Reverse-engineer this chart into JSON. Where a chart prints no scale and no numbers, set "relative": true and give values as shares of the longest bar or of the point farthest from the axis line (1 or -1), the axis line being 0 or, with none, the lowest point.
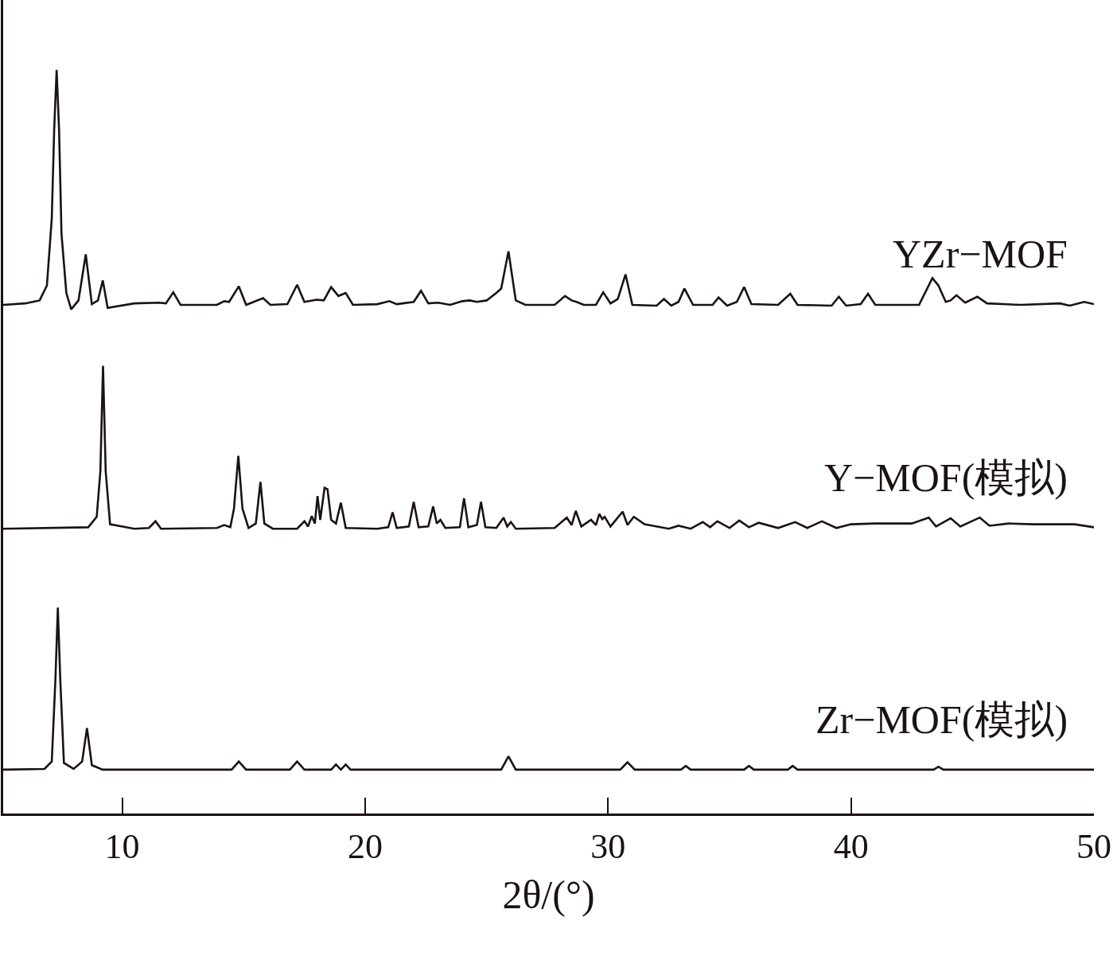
{
  "chart_data": {
    "type": "line",
    "relative": true,
    "xlabel": "2θ/(°)",
    "xlim": [
      5.1,
      50
    ],
    "xticks": [
      10,
      20,
      30,
      40,
      50
    ],
    "legend": false,
    "marker": "none",
    "line_style": "solid",
    "tick_labels": "x",
    "series": [
      {
        "name": "YZr−MOF",
        "color": "#1a1311",
        "x": [
          5.1,
          6.0,
          6.6,
          6.9,
          7.1,
          7.2,
          7.3,
          7.4,
          7.5,
          7.7,
          7.9,
          8.2,
          8.5,
          8.75,
          9.0,
          9.2,
          9.4,
          10.5,
          11.5,
          11.8,
          12.1,
          12.4,
          13.9,
          14.2,
          14.4,
          14.8,
          15.1,
          15.8,
          16.1,
          16.8,
          17.2,
          17.5,
          18.0,
          18.3,
          18.6,
          18.9,
          19.2,
          19.5,
          20.5,
          21.0,
          21.3,
          22.0,
          22.3,
          22.6,
          23.0,
          23.5,
          24.0,
          24.3,
          24.6,
          25.0,
          25.4,
          25.6,
          25.9,
          26.2,
          26.6,
          27.8,
          28.23,
          28.5,
          28.7,
          29.0,
          29.5,
          29.8,
          30.1,
          30.4,
          30.72,
          31.0,
          32.0,
          32.3,
          32.6,
          32.9,
          33.14,
          33.5,
          34.3,
          34.55,
          34.9,
          35.3,
          35.6,
          35.9,
          37.0,
          37.5,
          37.8,
          39.2,
          39.5,
          39.8,
          40.4,
          40.7,
          41.0,
          42.8,
          43.35,
          43.6,
          43.9,
          44.1,
          44.34,
          44.7,
          45.2,
          45.6,
          47.0,
          48.6,
          49.0,
          49.6,
          50.0
        ],
        "values": [
          0.684,
          0.686,
          0.69,
          0.71,
          0.8,
          0.92,
          1.0,
          0.92,
          0.78,
          0.7,
          0.678,
          0.69,
          0.752,
          0.685,
          0.69,
          0.717,
          0.68,
          0.686,
          0.687,
          0.686,
          0.701,
          0.684,
          0.684,
          0.689,
          0.688,
          0.709,
          0.684,
          0.693,
          0.684,
          0.685,
          0.711,
          0.688,
          0.691,
          0.69,
          0.708,
          0.696,
          0.7,
          0.684,
          0.685,
          0.689,
          0.685,
          0.688,
          0.703,
          0.686,
          0.687,
          0.684,
          0.689,
          0.69,
          0.688,
          0.69,
          0.7,
          0.706,
          0.756,
          0.69,
          0.684,
          0.684,
          0.696,
          0.69,
          0.688,
          0.684,
          0.684,
          0.701,
          0.686,
          0.692,
          0.725,
          0.684,
          0.683,
          0.692,
          0.683,
          0.688,
          0.706,
          0.684,
          0.684,
          0.694,
          0.683,
          0.688,
          0.708,
          0.685,
          0.684,
          0.699,
          0.684,
          0.683,
          0.695,
          0.683,
          0.685,
          0.699,
          0.684,
          0.684,
          0.72,
          0.71,
          0.688,
          0.69,
          0.697,
          0.687,
          0.695,
          0.686,
          0.684,
          0.686,
          0.683,
          0.688,
          0.685
        ]
      },
      {
        "name": "Y−MOF(模拟)",
        "color": "#1a1311",
        "x": [
          5.1,
          8.6,
          8.95,
          9.1,
          9.21,
          9.32,
          9.5,
          10.5,
          11.1,
          11.37,
          11.6,
          13.9,
          14.2,
          14.45,
          14.6,
          14.78,
          14.95,
          15.2,
          15.5,
          15.69,
          15.85,
          16.2,
          17.2,
          17.5,
          17.65,
          17.8,
          17.93,
          18.04,
          18.15,
          18.33,
          18.45,
          18.6,
          18.8,
          19.0,
          19.2,
          20.5,
          20.95,
          21.13,
          21.3,
          21.8,
          22.0,
          22.2,
          22.6,
          22.8,
          22.95,
          23.1,
          23.3,
          23.9,
          24.07,
          24.25,
          24.6,
          24.77,
          24.95,
          25.4,
          25.7,
          25.85,
          26.0,
          26.2,
          27.8,
          28.3,
          28.5,
          28.67,
          28.9,
          29.3,
          29.5,
          29.64,
          29.76,
          29.86,
          30.1,
          30.6,
          30.8,
          31.06,
          31.5,
          32.5,
          32.9,
          33.4,
          33.9,
          34.2,
          34.5,
          35.0,
          35.4,
          35.8,
          36.2,
          37.0,
          37.7,
          38.2,
          38.8,
          39.4,
          40.0,
          41.0,
          42.5,
          43.2,
          43.5,
          44.1,
          44.5,
          45.3,
          45.7,
          46.5,
          47.5,
          49.2,
          50.0
        ],
        "values": [
          0.383,
          0.385,
          0.399,
          0.46,
          0.602,
          0.46,
          0.389,
          0.383,
          0.384,
          0.393,
          0.383,
          0.384,
          0.388,
          0.385,
          0.41,
          0.481,
          0.41,
          0.384,
          0.39,
          0.446,
          0.39,
          0.383,
          0.383,
          0.393,
          0.386,
          0.4,
          0.39,
          0.427,
          0.395,
          0.438,
          0.436,
          0.395,
          0.39,
          0.418,
          0.384,
          0.383,
          0.385,
          0.405,
          0.384,
          0.386,
          0.419,
          0.385,
          0.386,
          0.413,
          0.39,
          0.395,
          0.384,
          0.385,
          0.424,
          0.385,
          0.388,
          0.419,
          0.385,
          0.384,
          0.398,
          0.386,
          0.392,
          0.383,
          0.384,
          0.398,
          0.388,
          0.407,
          0.386,
          0.395,
          0.388,
          0.403,
          0.396,
          0.399,
          0.386,
          0.406,
          0.388,
          0.399,
          0.389,
          0.383,
          0.387,
          0.383,
          0.392,
          0.385,
          0.393,
          0.384,
          0.394,
          0.385,
          0.391,
          0.384,
          0.392,
          0.384,
          0.393,
          0.384,
          0.389,
          0.39,
          0.39,
          0.398,
          0.386,
          0.397,
          0.386,
          0.398,
          0.387,
          0.39,
          0.389,
          0.389,
          0.385
        ]
      },
      {
        "name": "Zr−MOF(模拟)",
        "color": "#1a1311",
        "x": [
          5.1,
          6.8,
          7.1,
          7.25,
          7.35,
          7.45,
          7.6,
          8.0,
          8.35,
          8.55,
          8.75,
          9.2,
          14.5,
          14.8,
          15.1,
          16.9,
          17.2,
          17.5,
          18.6,
          18.8,
          19.0,
          19.2,
          19.4,
          25.6,
          25.9,
          26.2,
          30.5,
          30.8,
          31.1,
          33.0,
          33.2,
          33.4,
          35.6,
          35.8,
          36.0,
          37.4,
          37.6,
          37.8,
          43.4,
          43.6,
          43.8,
          50.0
        ],
        "values": [
          0.059,
          0.06,
          0.07,
          0.18,
          0.277,
          0.18,
          0.068,
          0.06,
          0.07,
          0.115,
          0.065,
          0.059,
          0.059,
          0.07,
          0.059,
          0.059,
          0.07,
          0.059,
          0.059,
          0.066,
          0.059,
          0.066,
          0.059,
          0.059,
          0.077,
          0.059,
          0.059,
          0.069,
          0.059,
          0.059,
          0.064,
          0.059,
          0.059,
          0.064,
          0.059,
          0.059,
          0.064,
          0.059,
          0.059,
          0.063,
          0.059,
          0.059
        ]
      }
    ]
  }
}
